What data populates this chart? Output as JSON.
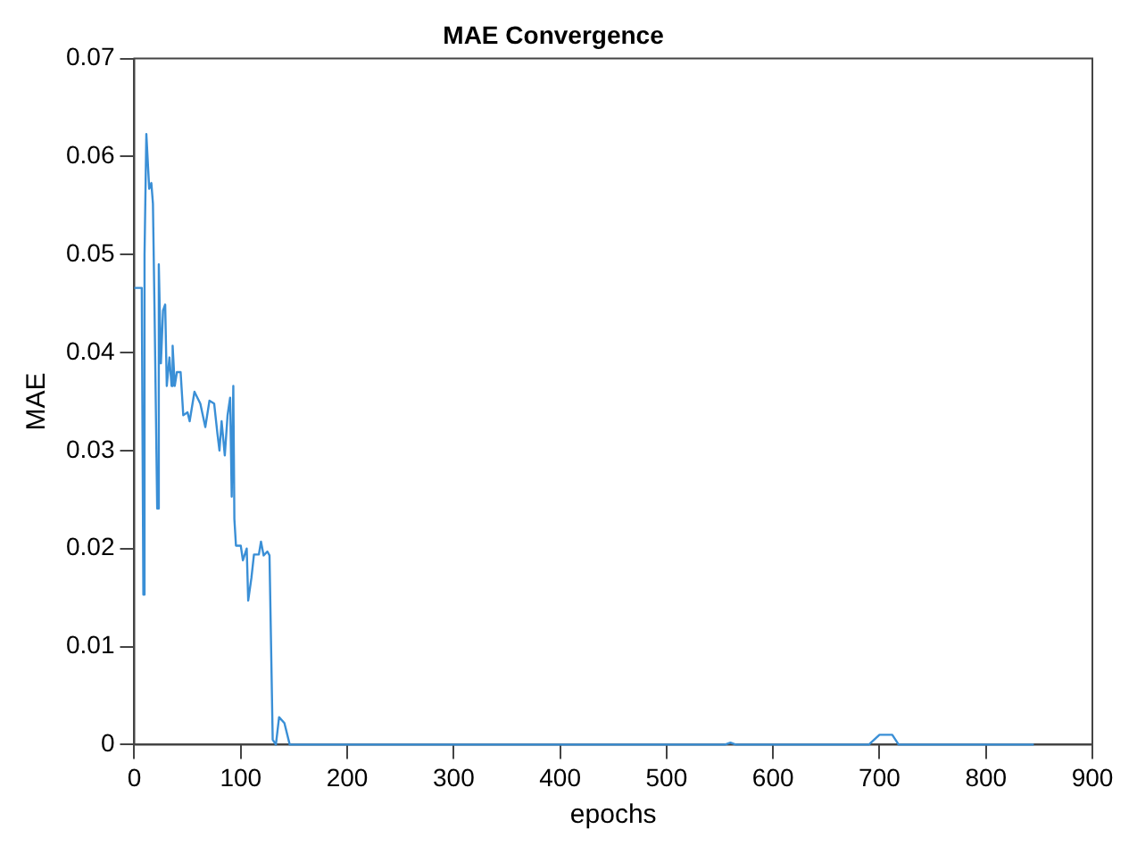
{
  "chart_data": {
    "type": "line",
    "title": "MAE Convergence",
    "xlabel": "epochs",
    "ylabel": "MAE",
    "xlim": [
      0,
      900
    ],
    "xticks": [
      0,
      100,
      200,
      300,
      400,
      500,
      600,
      700,
      800,
      900
    ],
    "ylim": [
      0,
      0.07
    ],
    "yticks": [
      0,
      0.01,
      0.02,
      0.03,
      0.04,
      0.05,
      0.06,
      0.07
    ],
    "grid": false,
    "legend": false,
    "marker": "none",
    "line_style": "solid",
    "series": [
      {
        "color": "#3a8fd6",
        "x": [
          0,
          7,
          8.5,
          9.6,
          11.3,
          14,
          16,
          17.5,
          19,
          21.5,
          23,
          25,
          27,
          29,
          30.5,
          33,
          35,
          36,
          38,
          40,
          43.5,
          46,
          50,
          52,
          56.5,
          62,
          66.7,
          70.6,
          75,
          78,
          80,
          82,
          85,
          87.6,
          90,
          91.5,
          93,
          94,
          95.5,
          100,
          102,
          105.6,
          107,
          110,
          112.4,
          117,
          119,
          121.5,
          125,
          127,
          130,
          133,
          136,
          141,
          146,
          200,
          300,
          400,
          500,
          555,
          560,
          565,
          600,
          690,
          700,
          705,
          712,
          718,
          725,
          800,
          845
        ],
        "values": [
          0.0466,
          0.0466,
          0.0153,
          0.05,
          0.0623,
          0.0567,
          0.0573,
          0.0552,
          0.0443,
          0.0241,
          0.049,
          0.0389,
          0.0443,
          0.0449,
          0.0366,
          0.0395,
          0.0366,
          0.0407,
          0.0366,
          0.038,
          0.038,
          0.0336,
          0.0339,
          0.033,
          0.036,
          0.0348,
          0.0324,
          0.0351,
          0.0348,
          0.0318,
          0.03,
          0.033,
          0.0295,
          0.0336,
          0.0354,
          0.0253,
          0.0366,
          0.023,
          0.0203,
          0.0203,
          0.0188,
          0.02,
          0.0147,
          0.017,
          0.0194,
          0.0194,
          0.0207,
          0.0193,
          0.0197,
          0.0193,
          0.0005,
          0,
          0.0028,
          0.0022,
          0,
          0,
          0,
          0,
          0,
          0,
          0.0002,
          0,
          0,
          0,
          0.001,
          0.001,
          0.001,
          0,
          0,
          0,
          0
        ]
      }
    ]
  }
}
